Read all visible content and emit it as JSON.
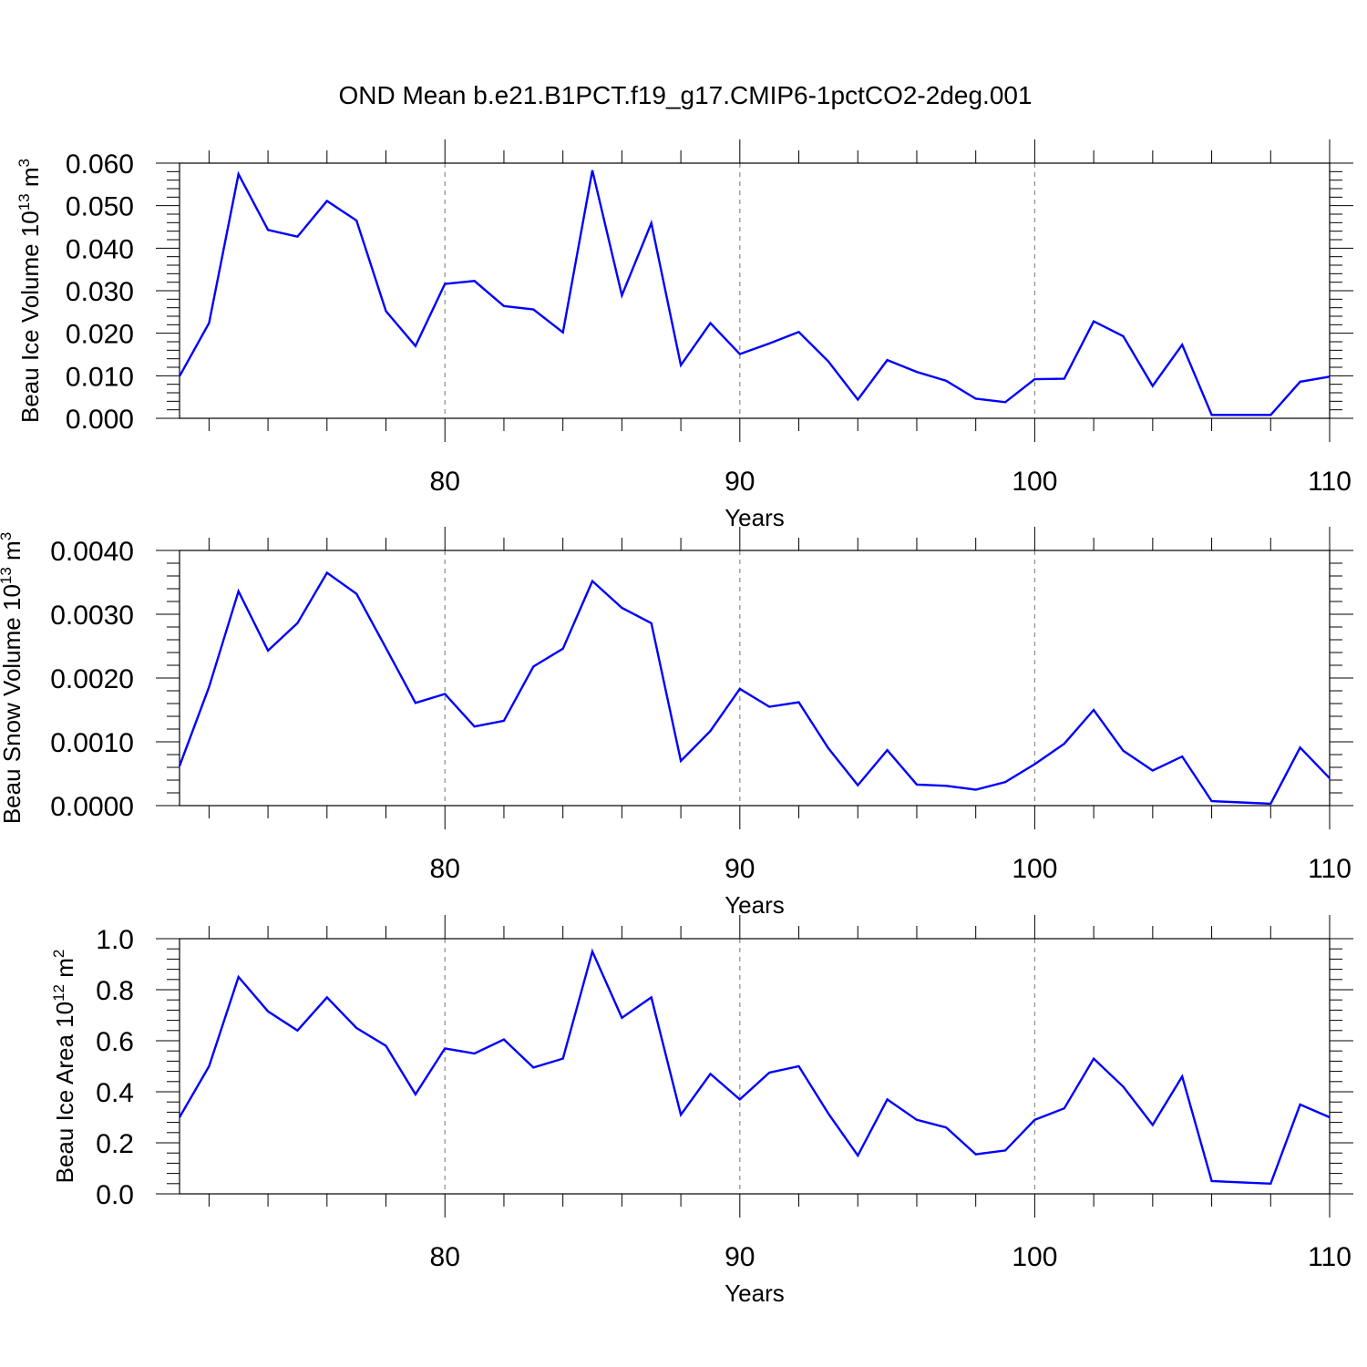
{
  "figure_title": "OND Mean b.e21.B1PCT.f19_g17.CMIP6-1pctCO2-2deg.001",
  "colors": {
    "line": "#0000ff",
    "axes": "#000000",
    "grid": "#8c8c8c",
    "background": "#ffffff"
  },
  "chart_data": [
    {
      "type": "line",
      "title": "",
      "xlabel": "Years",
      "ylabel": {
        "prefix": "Beau Ice Volume 10",
        "exponent": "13",
        "unit": " m",
        "unit_exponent": "3"
      },
      "xlim": [
        71,
        110
      ],
      "ylim": [
        0,
        0.06
      ],
      "x_ticks": [
        80,
        90,
        100,
        110
      ],
      "x_tick_labels": [
        "80",
        "90",
        "100",
        "110"
      ],
      "y_ticks": [
        0,
        0.01,
        0.02,
        0.03,
        0.04,
        0.05,
        0.06
      ],
      "y_tick_labels": [
        "0.000",
        "0.010",
        "0.020",
        "0.030",
        "0.040",
        "0.050",
        "0.060"
      ],
      "grid": "vertical dashed at major x ticks",
      "series": [
        {
          "x": [
            71,
            72,
            73,
            74,
            75,
            76,
            77,
            78,
            79,
            80,
            81,
            82,
            83,
            84,
            85,
            86,
            87,
            88,
            89,
            90,
            91,
            92,
            93,
            94,
            95,
            96,
            97,
            98,
            99,
            100,
            101,
            102,
            103,
            104,
            105,
            106,
            107,
            108,
            109,
            110
          ],
          "values": [
            0.0099,
            0.0224,
            0.0574,
            0.0443,
            0.0427,
            0.0511,
            0.0465,
            0.0252,
            0.017,
            0.0316,
            0.0323,
            0.0264,
            0.0256,
            0.0202,
            0.0583,
            0.0289,
            0.0459,
            0.0125,
            0.0224,
            0.0151,
            0.0176,
            0.0203,
            0.0134,
            0.0044,
            0.0137,
            0.0109,
            0.0088,
            0.0046,
            0.0038,
            0.0092,
            0.0093,
            0.0228,
            0.0193,
            0.0076,
            0.0173,
            0.0008,
            0.0008,
            0.0008,
            0.0086,
            0.0098
          ]
        }
      ]
    },
    {
      "type": "line",
      "title": "",
      "xlabel": "Years",
      "ylabel": {
        "prefix": "Beau Snow Volume 10",
        "exponent": "13",
        "unit": " m",
        "unit_exponent": "3"
      },
      "xlim": [
        71,
        110
      ],
      "ylim": [
        0,
        0.004
      ],
      "x_ticks": [
        80,
        90,
        100,
        110
      ],
      "x_tick_labels": [
        "80",
        "90",
        "100",
        "110"
      ],
      "y_ticks": [
        0,
        0.001,
        0.002,
        0.003,
        0.004
      ],
      "y_tick_labels": [
        "0.0000",
        "0.0010",
        "0.0020",
        "0.0030",
        "0.0040"
      ],
      "grid": "vertical dashed at major x ticks",
      "series": [
        {
          "x": [
            71,
            72,
            73,
            74,
            75,
            76,
            77,
            78,
            79,
            80,
            81,
            82,
            83,
            84,
            85,
            86,
            87,
            88,
            89,
            90,
            91,
            92,
            93,
            94,
            95,
            96,
            97,
            98,
            99,
            100,
            101,
            102,
            103,
            104,
            105,
            106,
            107,
            108,
            109,
            110
          ],
          "values": [
            0.00062,
            0.00186,
            0.00336,
            0.00243,
            0.00286,
            0.00365,
            0.00332,
            0.00247,
            0.00161,
            0.00175,
            0.00124,
            0.00133,
            0.00218,
            0.00246,
            0.00352,
            0.0031,
            0.00286,
            0.0007,
            0.00117,
            0.00183,
            0.00155,
            0.00162,
            0.0009,
            0.00032,
            0.00087,
            0.00033,
            0.00031,
            0.00025,
            0.00037,
            0.00065,
            0.00097,
            0.0015,
            0.00086,
            0.00055,
            0.00077,
            7e-05,
            5e-05,
            3e-05,
            0.00091,
            0.00043
          ]
        }
      ]
    },
    {
      "type": "line",
      "title": "",
      "xlabel": "Years",
      "ylabel": {
        "prefix": "Beau Ice Area 10",
        "exponent": "12",
        "unit": " m",
        "unit_exponent": "2"
      },
      "xlim": [
        71,
        110
      ],
      "ylim": [
        0,
        1.0
      ],
      "x_ticks": [
        80,
        90,
        100,
        110
      ],
      "x_tick_labels": [
        "80",
        "90",
        "100",
        "110"
      ],
      "y_ticks": [
        0,
        0.2,
        0.4,
        0.6,
        0.8,
        1.0
      ],
      "y_tick_labels": [
        "0.0",
        "0.2",
        "0.4",
        "0.6",
        "0.8",
        "1.0"
      ],
      "grid": "vertical dashed at major x ticks",
      "series": [
        {
          "x": [
            71,
            72,
            73,
            74,
            75,
            76,
            77,
            78,
            79,
            80,
            81,
            82,
            83,
            84,
            85,
            86,
            87,
            88,
            89,
            90,
            91,
            92,
            93,
            94,
            95,
            96,
            97,
            98,
            99,
            100,
            101,
            102,
            103,
            104,
            105,
            106,
            107,
            108,
            109,
            110
          ],
          "values": [
            0.3,
            0.5,
            0.85,
            0.715,
            0.64,
            0.77,
            0.65,
            0.58,
            0.39,
            0.57,
            0.55,
            0.605,
            0.495,
            0.53,
            0.95,
            0.69,
            0.77,
            0.31,
            0.47,
            0.37,
            0.475,
            0.5,
            0.315,
            0.15,
            0.37,
            0.29,
            0.26,
            0.155,
            0.17,
            0.29,
            0.335,
            0.53,
            0.42,
            0.27,
            0.46,
            0.05,
            0.045,
            0.04,
            0.35,
            0.3
          ]
        }
      ]
    }
  ]
}
